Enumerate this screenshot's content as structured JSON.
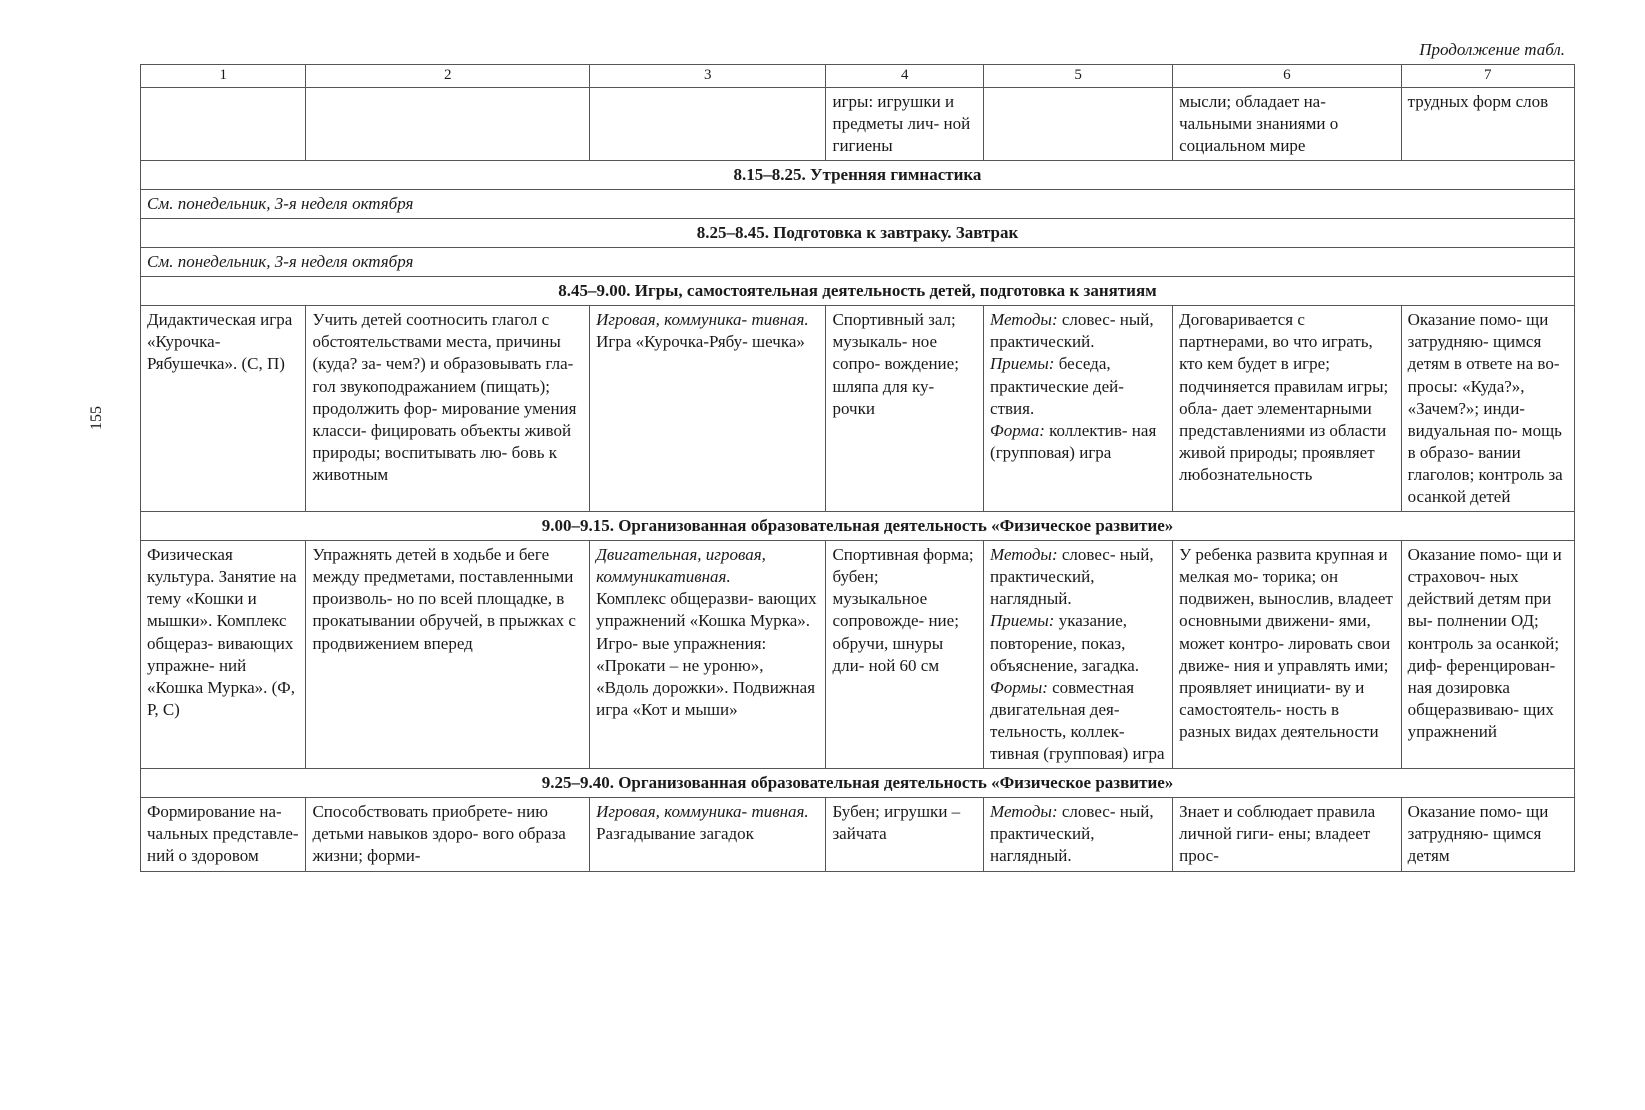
{
  "pageNumber": "155",
  "continuedLabel": "Продолжение табл.",
  "columns": [
    "1",
    "2",
    "3",
    "4",
    "5",
    "6",
    "7"
  ],
  "overflowRow": {
    "c1": "",
    "c2": "",
    "c3": "",
    "c4": "игры: игрушки и предметы лич- ной гигиены",
    "c5": "",
    "c6": "мысли; обладает на- чальными знаниями о социальном мире",
    "c7": "трудных форм слов"
  },
  "section1": "8.15–8.25. Утренняя гимнастика",
  "mondayRef1": "См. понедельник, 3-я неделя октября",
  "section2": "8.25–8.45. Подготовка к завтраку. Завтрак",
  "mondayRef2": "См. понедельник, 3-я неделя октября",
  "section3": "8.45–9.00. Игры, самостоятельная деятельность детей, подготовка к занятиям",
  "row3": {
    "c1": "Дидактическая игра «Курочка-Рябушечка». (С, П)",
    "c2": "Учить детей соотносить глагол с обстоятельствами места, причины (куда? за- чем?) и образовывать гла- гол звукоподражанием (пищать); продолжить фор- мирование умения класси- фицировать объекты живой природы; воспитывать лю- бовь к животным",
    "c3a": "Игровая, коммуника- тивная.",
    "c3b": "Игра «Курочка-Рябу- шечка»",
    "c4": "Спортивный зал; музыкаль- ное сопро- вождение; шляпа для ку- рочки",
    "c5a": "Методы:",
    "c5a2": " словес- ный, практический.",
    "c5b": "Приемы:",
    "c5b2": " беседа, практические дей- ствия.",
    "c5c": "Форма:",
    "c5c2": " коллектив- ная (групповая) игра",
    "c6": "Договаривается с партнерами, во что играть, кто кем будет в игре; подчиняется правилам игры; обла- дает элементарными представлениями из области живой природы; проявляет любознательность",
    "c7": "Оказание помо- щи затрудняю- щимся детям в ответе на во- просы: «Куда?», «Зачем?»; инди- видуальная по- мощь в образо- вании глаголов; контроль за осанкой детей"
  },
  "section4": "9.00–9.15. Организованная образовательная деятельность «Физическое развитие»",
  "row4": {
    "c1": "Физическая культура. Занятие на тему «Кошки и мышки». Комплекс общераз- вивающих упражне- ний «Кошка Мурка». (Ф, Р, С)",
    "c2": "Упражнять детей в ходьбе и беге между предметами, поставленными произволь- но по всей площадке, в прокатывании обручей, в прыжках с продвижением вперед",
    "c3a": "Двигательная, игровая, коммуникативная.",
    "c3b": "Комплекс общеразви- вающих упражнений «Кошка Мурка». Игро- вые упражнения: «Прокати – не уроню», «Вдоль дорожки». Подвижная игра «Кот и мыши»",
    "c4": "Спортивная форма; бубен; музыкальное сопровожде- ние; обручи, шнуры дли- ной 60 см",
    "c5a": "Методы:",
    "c5a2": " словес- ный, практический, наглядный.",
    "c5b": "Приемы:",
    "c5b2": " указание, повторение, показ, объяснение, загадка.",
    "c5c": "Формы:",
    "c5c2": " совместная двигательная дея- тельность, коллек- тивная (групповая) игра",
    "c6": "У ребенка развита крупная и мелкая мо- торика; он подвижен, вынослив, владеет основными движени- ями, может контро- лировать свои движе- ния и управлять ими; проявляет инициати- ву и самостоятель- ность в разных видах деятельности",
    "c7": "Оказание помо- щи и страховоч- ных действий детям при вы- полнении ОД; контроль за осанкой; диф- ференцирован- ная дозировка общеразвиваю- щих упражнений"
  },
  "section5": "9.25–9.40. Организованная образовательная деятельность «Физическое развитие»",
  "row5": {
    "c1": "Формирование на- чальных представле- ний о здоровом",
    "c2": "Способствовать приобрете- нию детьми навыков здоро- вого образа жизни; форми-",
    "c3a": "Игровая, коммуника- тивная.",
    "c3b": "Разгадывание загадок",
    "c4": "Бубен; игрушки – зайчата",
    "c5a": "Методы:",
    "c5a2": " словес- ный, практический, наглядный.",
    "c6": "Знает и соблюдает правила личной гиги- ены; владеет прос-",
    "c7": "Оказание помо- щи затрудняю- щимся детям"
  },
  "styling": {
    "fontFamily": "Times New Roman",
    "baseFontSize": 17,
    "borderColor": "#555555",
    "background": "#ffffff",
    "align_section": "center",
    "align_th": "center",
    "colWidths": [
      "10.5%",
      "18%",
      "15%",
      "10%",
      "12%",
      "14.5%",
      "11%"
    ]
  }
}
